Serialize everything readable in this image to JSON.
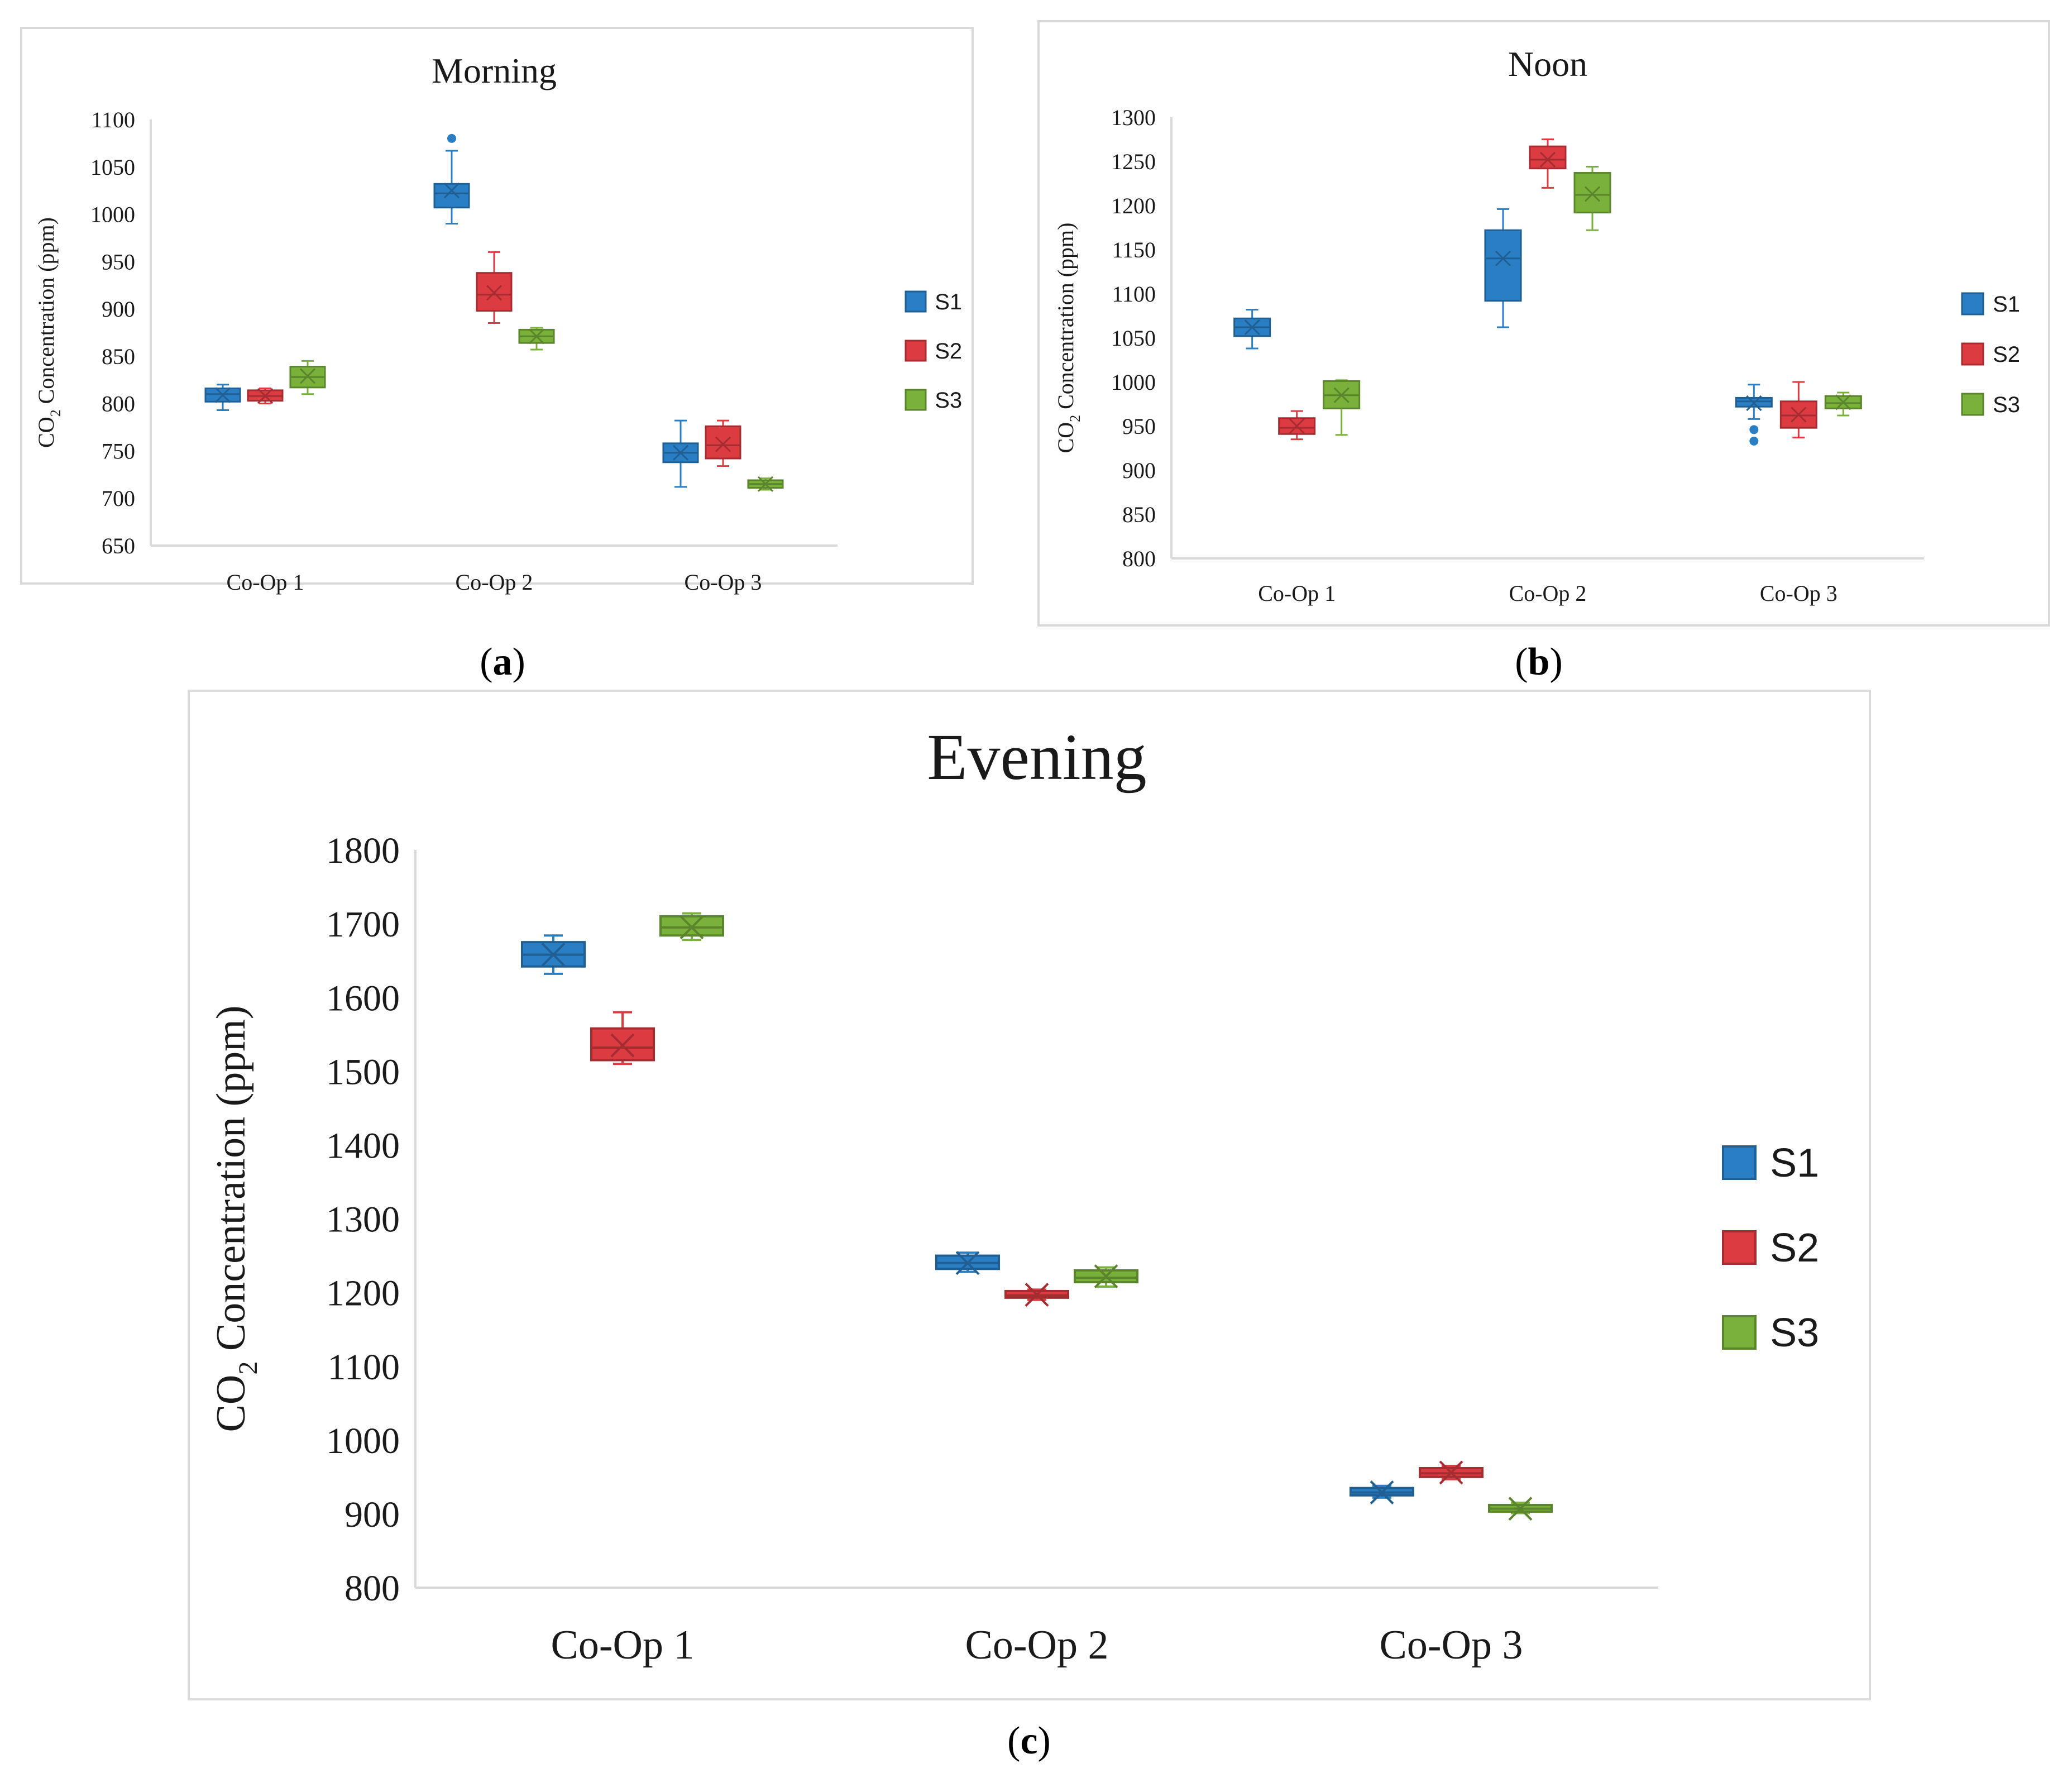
{
  "colors": {
    "S1": "#2a7fc4",
    "S2": "#dc3b41",
    "S3": "#79b13a",
    "axis": "#d9d9d9",
    "frame": "#d9d9d9",
    "text": "#1a1a1a"
  },
  "captions": {
    "a": {
      "open": "(",
      "letter": "a",
      "close": ")"
    },
    "b": {
      "open": "(",
      "letter": "b",
      "close": ")"
    },
    "c": {
      "open": "(",
      "letter": "c",
      "close": ")"
    }
  },
  "chart_data": [
    {
      "id": "a",
      "type": "box",
      "title": "Morning",
      "ylabel": {
        "prefix": "CO",
        "sub": "2",
        "rest": " Concentration (ppm)"
      },
      "categories": [
        "Co-Op 1",
        "Co-Op 2",
        "Co-Op 3"
      ],
      "ylim": [
        650,
        1100
      ],
      "yticks": [
        650,
        700,
        750,
        800,
        850,
        900,
        950,
        1000,
        1050,
        1100
      ],
      "legend": [
        "S1",
        "S2",
        "S3"
      ],
      "series": [
        {
          "name": "S1",
          "boxes": [
            {
              "min": 793,
              "q1": 802,
              "median": 810,
              "q3": 816,
              "max": 820,
              "mean": 809,
              "outliers": []
            },
            {
              "min": 990,
              "q1": 1007,
              "median": 1022,
              "q3": 1032,
              "max": 1067,
              "mean": 1025,
              "outliers": [
                1080
              ]
            },
            {
              "min": 712,
              "q1": 738,
              "median": 748,
              "q3": 758,
              "max": 782,
              "mean": 748,
              "outliers": []
            }
          ]
        },
        {
          "name": "S2",
          "boxes": [
            {
              "min": 800,
              "q1": 803,
              "median": 808,
              "q3": 814,
              "max": 816,
              "mean": 808,
              "outliers": []
            },
            {
              "min": 885,
              "q1": 898,
              "median": 915,
              "q3": 938,
              "max": 960,
              "mean": 917,
              "outliers": []
            },
            {
              "min": 734,
              "q1": 742,
              "median": 756,
              "q3": 776,
              "max": 782,
              "mean": 757,
              "outliers": []
            }
          ]
        },
        {
          "name": "S3",
          "boxes": [
            {
              "min": 810,
              "q1": 817,
              "median": 828,
              "q3": 839,
              "max": 845,
              "mean": 829,
              "outliers": []
            },
            {
              "min": 857,
              "q1": 864,
              "median": 871,
              "q3": 878,
              "max": 880,
              "mean": 871,
              "outliers": []
            },
            {
              "min": 709,
              "q1": 711,
              "median": 715,
              "q3": 719,
              "max": 721,
              "mean": 715,
              "outliers": []
            }
          ]
        }
      ]
    },
    {
      "id": "b",
      "type": "box",
      "title": "Noon",
      "ylabel": {
        "prefix": "CO",
        "sub": "2",
        "rest": " Concentration (ppm)"
      },
      "categories": [
        "Co-Op 1",
        "Co-Op 2",
        "Co-Op 3"
      ],
      "ylim": [
        800,
        1300
      ],
      "yticks": [
        800,
        850,
        900,
        950,
        1000,
        1050,
        1100,
        1150,
        1200,
        1250,
        1300
      ],
      "legend": [
        "S1",
        "S2",
        "S3"
      ],
      "series": [
        {
          "name": "S1",
          "boxes": [
            {
              "min": 1038,
              "q1": 1052,
              "median": 1062,
              "q3": 1072,
              "max": 1082,
              "mean": 1062,
              "outliers": []
            },
            {
              "min": 1062,
              "q1": 1092,
              "median": 1140,
              "q3": 1172,
              "max": 1196,
              "mean": 1140,
              "outliers": []
            },
            {
              "min": 958,
              "q1": 972,
              "median": 978,
              "q3": 982,
              "max": 997,
              "mean": 976,
              "outliers": [
                946,
                933
              ]
            }
          ]
        },
        {
          "name": "S2",
          "boxes": [
            {
              "min": 935,
              "q1": 941,
              "median": 948,
              "q3": 959,
              "max": 967,
              "mean": 950,
              "outliers": []
            },
            {
              "min": 1220,
              "q1": 1242,
              "median": 1252,
              "q3": 1267,
              "max": 1275,
              "mean": 1252,
              "outliers": []
            },
            {
              "min": 937,
              "q1": 948,
              "median": 962,
              "q3": 978,
              "max": 1000,
              "mean": 963,
              "outliers": []
            }
          ]
        },
        {
          "name": "S3",
          "boxes": [
            {
              "min": 940,
              "q1": 970,
              "median": 985,
              "q3": 1001,
              "max": 1002,
              "mean": 985,
              "outliers": []
            },
            {
              "min": 1172,
              "q1": 1192,
              "median": 1212,
              "q3": 1237,
              "max": 1244,
              "mean": 1213,
              "outliers": []
            },
            {
              "min": 962,
              "q1": 970,
              "median": 976,
              "q3": 984,
              "max": 988,
              "mean": 977,
              "outliers": []
            }
          ]
        }
      ]
    },
    {
      "id": "c",
      "type": "box",
      "title": "Evening",
      "ylabel": {
        "prefix": "CO",
        "sub": "2",
        "rest": " Concentration (ppm)"
      },
      "categories": [
        "Co-Op 1",
        "Co-Op 2",
        "Co-Op 3"
      ],
      "ylim": [
        800,
        1800
      ],
      "yticks": [
        800,
        900,
        1000,
        1100,
        1200,
        1300,
        1400,
        1500,
        1600,
        1700,
        1800
      ],
      "legend": [
        "S1",
        "S2",
        "S3"
      ],
      "series": [
        {
          "name": "S1",
          "boxes": [
            {
              "min": 1632,
              "q1": 1642,
              "median": 1658,
              "q3": 1675,
              "max": 1684,
              "mean": 1658,
              "outliers": []
            },
            {
              "min": 1228,
              "q1": 1232,
              "median": 1240,
              "q3": 1250,
              "max": 1254,
              "mean": 1240,
              "outliers": []
            },
            {
              "min": 922,
              "q1": 925,
              "median": 929,
              "q3": 935,
              "max": 938,
              "mean": 929,
              "outliers": []
            }
          ]
        },
        {
          "name": "S2",
          "boxes": [
            {
              "min": 1510,
              "q1": 1515,
              "median": 1532,
              "q3": 1558,
              "max": 1580,
              "mean": 1535,
              "outliers": []
            },
            {
              "min": 1190,
              "q1": 1193,
              "median": 1196,
              "q3": 1202,
              "max": 1204,
              "mean": 1197,
              "outliers": []
            },
            {
              "min": 947,
              "q1": 950,
              "median": 955,
              "q3": 962,
              "max": 965,
              "mean": 956,
              "outliers": []
            }
          ]
        },
        {
          "name": "S3",
          "boxes": [
            {
              "min": 1678,
              "q1": 1684,
              "median": 1695,
              "q3": 1710,
              "max": 1714,
              "mean": 1695,
              "outliers": []
            },
            {
              "min": 1208,
              "q1": 1214,
              "median": 1220,
              "q3": 1230,
              "max": 1234,
              "mean": 1222,
              "outliers": []
            },
            {
              "min": 901,
              "q1": 903,
              "median": 907,
              "q3": 912,
              "max": 915,
              "mean": 907,
              "outliers": []
            }
          ]
        }
      ]
    }
  ]
}
